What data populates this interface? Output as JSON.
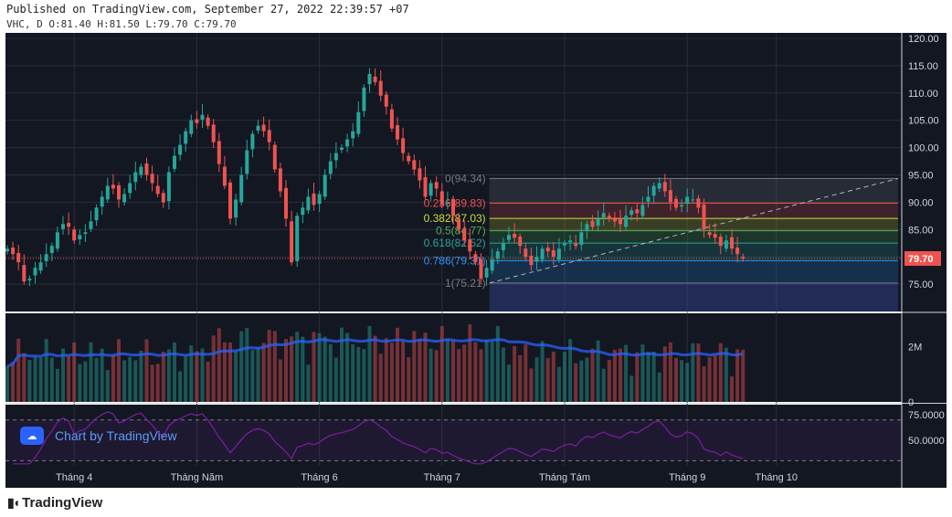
{
  "header": {
    "published": "Published on TradingView.com, September 27, 2022 22:39:57 +07",
    "ohlc": "VHC, D O:81.40 H:81.50 L:79.70 C:79.70"
  },
  "attribution": "Chart by TradingView",
  "footer_logo": "TradingView",
  "colors": {
    "background": "#131722",
    "up": "#26a69a",
    "down": "#ef5350",
    "volume_ma": "#2962ff",
    "rsi_line": "#7b1fa2",
    "last_price_label": "#ef5350"
  },
  "icons": {
    "attribution": "tradingview-cloud-icon",
    "logo": "tradingview-logo-icon"
  },
  "chart_data": {
    "type": "candlestick",
    "symbol": "VHC",
    "timeframe": "D",
    "last_price": 79.7,
    "last_price_label": "79.70",
    "price_axis": {
      "range": [
        70.0,
        121.0
      ],
      "ticks": [
        75,
        80,
        85,
        90,
        95,
        100,
        105,
        110,
        115,
        120
      ],
      "tick_labels": [
        "75.00",
        "80.00",
        "85.00",
        "90.00",
        "95.00",
        "100.00",
        "105.00",
        "110.00",
        "115.00",
        "120.00"
      ]
    },
    "time_axis": {
      "labels": [
        "Tháng 4",
        "Tháng Năm",
        "Tháng 6",
        "Tháng 7",
        "Tháng Tám",
        "Tháng 9",
        "Tháng 10"
      ],
      "label_index": [
        12,
        34,
        56,
        78,
        100,
        122,
        138
      ]
    },
    "closes": [
      81.5,
      80.5,
      79.0,
      75.5,
      76.0,
      78.0,
      79.0,
      80.5,
      82.0,
      84.5,
      86.0,
      85.5,
      83.0,
      84.0,
      84.5,
      86.5,
      89.0,
      91.0,
      93.0,
      92.5,
      90.5,
      91.5,
      93.5,
      95.5,
      96.5,
      95.0,
      93.5,
      91.5,
      90.0,
      95.5,
      98.5,
      100.5,
      103.0,
      105.0,
      104.5,
      106.0,
      104.0,
      101.0,
      97.0,
      93.0,
      87.0,
      90.5,
      95.0,
      99.5,
      102.5,
      104.0,
      103.0,
      101.0,
      96.0,
      92.0,
      87.0,
      79.0,
      87.5,
      89.0,
      91.0,
      89.5,
      91.5,
      95.0,
      97.5,
      99.0,
      100.0,
      101.5,
      103.0,
      106.5,
      111.0,
      113.5,
      112.0,
      109.5,
      107.5,
      103.5,
      101.5,
      99.0,
      97.5,
      96.0,
      94.0,
      91.0,
      93.5,
      92.5,
      89.5,
      90.0,
      87.5,
      85.0,
      83.0,
      81.0,
      79.0,
      76.0,
      78.0,
      79.5,
      81.0,
      82.5,
      84.0,
      83.5,
      82.0,
      80.0,
      78.5,
      80.0,
      81.5,
      81.0,
      80.0,
      81.5,
      82.5,
      83.0,
      82.0,
      84.5,
      86.0,
      85.5,
      87.0,
      88.0,
      87.0,
      86.5,
      86.0,
      87.5,
      88.5,
      88.0,
      89.5,
      91.0,
      93.0,
      93.5,
      92.0,
      90.0,
      89.0,
      89.5,
      91.0,
      90.5,
      89.0,
      85.0,
      84.0,
      83.5,
      82.0,
      83.0,
      81.5,
      80.5,
      79.7
    ],
    "recent_low": 75.21,
    "recent_high": 94.34,
    "fib_levels": [
      {
        "ratio": "1",
        "price": 75.21,
        "label": "1(75.21)",
        "color": "#787b86"
      },
      {
        "ratio": "0.786",
        "price": 79.31,
        "label": "0.786(79.31)",
        "color": "#2196f3"
      },
      {
        "ratio": "0.618",
        "price": 82.52,
        "label": "0.618(82.52)",
        "color": "#26a69a"
      },
      {
        "ratio": "0.5",
        "price": 84.77,
        "label": "0.5(84.77)",
        "color": "#4caf50"
      },
      {
        "ratio": "0.382",
        "price": 87.03,
        "label": "0.382(87.03)",
        "color": "#cddc39"
      },
      {
        "ratio": "0.236",
        "price": 89.83,
        "label": "0.236(89.83)",
        "color": "#ef5350"
      },
      {
        "ratio": "0",
        "price": 94.34,
        "label": "0(94.34)",
        "color": "#787b86"
      }
    ],
    "volume_axis": {
      "ticks": [
        0,
        2000000
      ],
      "tick_labels": [
        "0",
        "2M"
      ],
      "max": 3200000
    },
    "rsi_axis": {
      "range": [
        25,
        85
      ],
      "ticks": [
        50,
        75
      ],
      "tick_labels": [
        "50.0000",
        "75.0000"
      ],
      "bands": [
        30,
        70
      ]
    },
    "grid": true
  }
}
